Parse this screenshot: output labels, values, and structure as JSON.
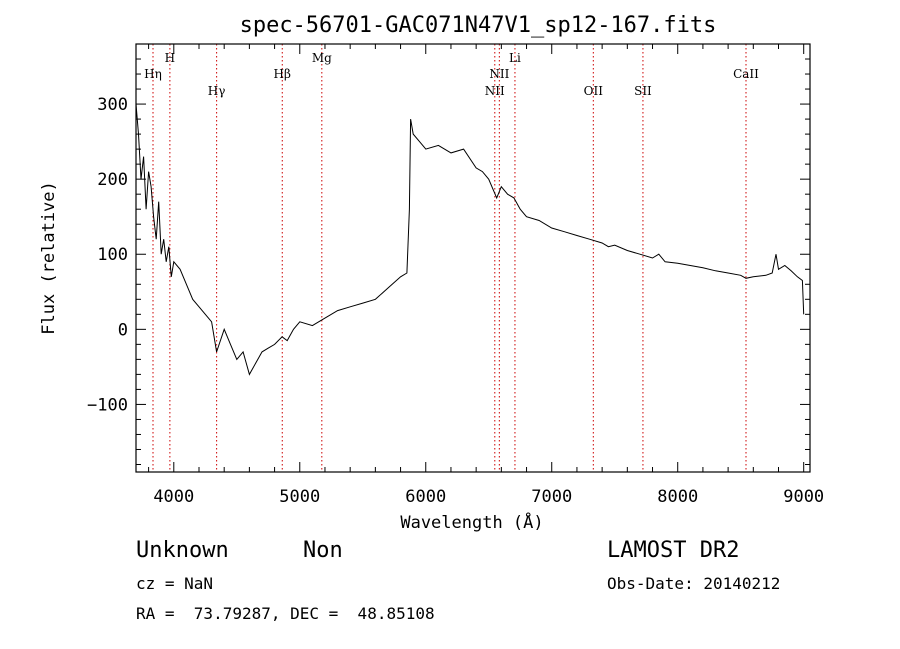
{
  "chart_data": {
    "type": "line",
    "title": "spec-56701-GAC071N47V1_sp12-167.fits",
    "xlabel": "Wavelength (Å)",
    "ylabel": "Flux (relative)",
    "xlim": [
      3700,
      9050
    ],
    "ylim": [
      -190,
      380
    ],
    "x_ticks": [
      4000,
      5000,
      6000,
      7000,
      8000,
      9000
    ],
    "y_ticks": [
      -100,
      0,
      100,
      200,
      300
    ],
    "grid": false,
    "spectrum": {
      "x": [
        3700,
        3720,
        3740,
        3760,
        3780,
        3800,
        3820,
        3840,
        3860,
        3880,
        3900,
        3920,
        3940,
        3960,
        3980,
        4000,
        4050,
        4100,
        4150,
        4200,
        4250,
        4300,
        4340,
        4400,
        4450,
        4500,
        4550,
        4600,
        4650,
        4700,
        4750,
        4800,
        4860,
        4900,
        4950,
        5000,
        5100,
        5200,
        5300,
        5400,
        5500,
        5600,
        5700,
        5800,
        5850,
        5870,
        5880,
        5890,
        5900,
        5950,
        6000,
        6100,
        6200,
        6300,
        6400,
        6450,
        6500,
        6563,
        6600,
        6650,
        6700,
        6750,
        6800,
        6900,
        7000,
        7100,
        7200,
        7300,
        7400,
        7450,
        7500,
        7600,
        7700,
        7800,
        7850,
        7900,
        8000,
        8100,
        8200,
        8300,
        8400,
        8500,
        8542,
        8600,
        8700,
        8750,
        8780,
        8800,
        8850,
        8900,
        8950,
        8990,
        9000
      ],
      "y": [
        300,
        260,
        200,
        230,
        160,
        210,
        190,
        150,
        120,
        170,
        100,
        120,
        90,
        110,
        70,
        90,
        80,
        60,
        40,
        30,
        20,
        10,
        -30,
        0,
        -20,
        -40,
        -30,
        -60,
        -45,
        -30,
        -25,
        -20,
        -10,
        -15,
        0,
        10,
        5,
        15,
        25,
        30,
        35,
        40,
        55,
        70,
        75,
        160,
        280,
        270,
        260,
        250,
        240,
        245,
        235,
        240,
        215,
        210,
        200,
        175,
        190,
        180,
        175,
        160,
        150,
        145,
        135,
        130,
        125,
        120,
        115,
        110,
        112,
        105,
        100,
        95,
        100,
        90,
        88,
        85,
        82,
        78,
        75,
        72,
        68,
        70,
        72,
        75,
        100,
        80,
        85,
        78,
        70,
        65,
        20
      ]
    },
    "reference_lines": [
      {
        "label": "Hη",
        "x": 3835,
        "label_row": 2
      },
      {
        "label": "H",
        "x": 3969,
        "label_row": 1
      },
      {
        "label": "Hγ",
        "x": 4340,
        "label_row": 3
      },
      {
        "label": "Hβ",
        "x": 4861,
        "label_row": 2
      },
      {
        "label": "Mg",
        "x": 5175,
        "label_row": 1
      },
      {
        "label": "NII",
        "x": 6548,
        "label_row": 3
      },
      {
        "label": "NII",
        "x": 6584,
        "label_row": 2
      },
      {
        "label": "Li",
        "x": 6708,
        "label_row": 1
      },
      {
        "label": "OII",
        "x": 7330,
        "label_row": 3
      },
      {
        "label": "SII",
        "x": 7724,
        "label_row": 3
      },
      {
        "label": "CaII",
        "x": 8542,
        "label_row": 2
      }
    ],
    "line_color": "#000000",
    "reference_line_color": "#cc0000"
  },
  "info": {
    "object_class": "Unknown",
    "subclass": "Non",
    "survey": "LAMOST DR2",
    "redshift": "cz = NaN",
    "obs_date": "Obs-Date: 20140212",
    "coordinates": "RA =  73.79287, DEC =  48.85108"
  }
}
